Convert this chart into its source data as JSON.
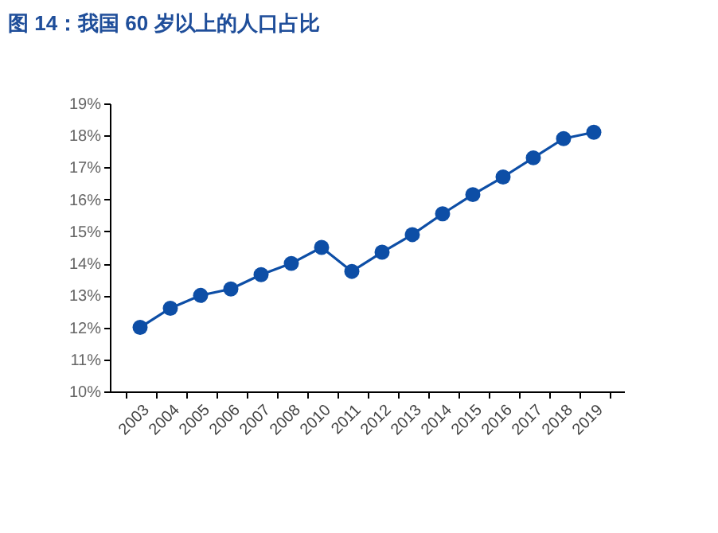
{
  "chart_data": {
    "type": "line",
    "title": "图 14：我国 60 岁以上的人口占比",
    "categories": [
      "2003",
      "2004",
      "2005",
      "2006",
      "2007",
      "2008",
      "2010",
      "2011",
      "2012",
      "2013",
      "2014",
      "2015",
      "2016",
      "2017",
      "2018",
      "2019"
    ],
    "series": [
      {
        "color": "#0d4ea6",
        "values": [
          12.0,
          12.6,
          13.0,
          13.2,
          13.65,
          14.0,
          14.5,
          13.75,
          14.35,
          14.9,
          15.55,
          16.15,
          16.7,
          17.3,
          17.9,
          18.1
        ]
      }
    ],
    "ylim": [
      10,
      19
    ],
    "yticks": [
      {
        "value": 10,
        "label": "10%"
      },
      {
        "value": 11,
        "label": "11%"
      },
      {
        "value": 12,
        "label": "12%"
      },
      {
        "value": 13,
        "label": "13%"
      },
      {
        "value": 14,
        "label": "14%"
      },
      {
        "value": 15,
        "label": "15%"
      },
      {
        "value": 16,
        "label": "16%"
      },
      {
        "value": 17,
        "label": "17%"
      },
      {
        "value": 18,
        "label": "18%"
      },
      {
        "value": 19,
        "label": "19%"
      }
    ],
    "grid": false,
    "legend": false,
    "marker": "circle",
    "line_style": "solid"
  }
}
